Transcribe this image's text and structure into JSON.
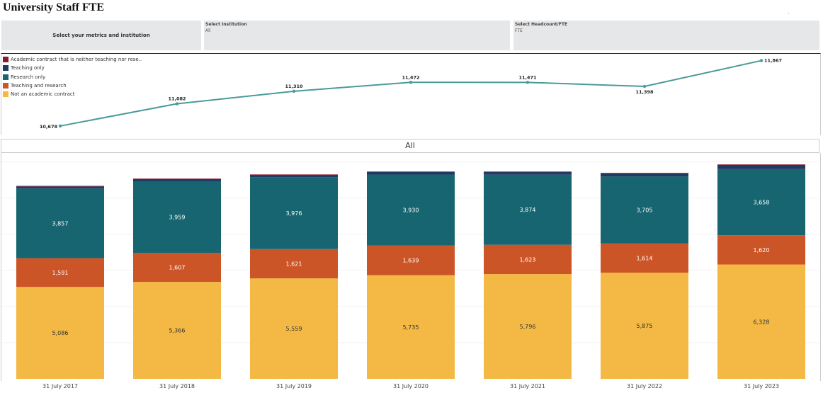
{
  "header": {
    "title": "University Staff FTE"
  },
  "filters": {
    "main_label": "Select your metrics and institution",
    "institution": {
      "label": "Select Institution",
      "value": "All"
    },
    "headcount": {
      "label": "Select Headcount/FTE",
      "value": "FTE"
    }
  },
  "legend": [
    {
      "label": "Academic contract that is neither teaching nor rese..",
      "color": "#8b1a2e"
    },
    {
      "label": "Teaching only",
      "color": "#1f3b63"
    },
    {
      "label": "Research only",
      "color": "#166570"
    },
    {
      "label": "Teaching and research",
      "color": "#cc5527"
    },
    {
      "label": "Not an academic contract",
      "color": "#f3b944"
    }
  ],
  "bar_header": "All",
  "chart_data": [
    {
      "type": "line",
      "x": [
        "31 July 2017",
        "31 July 2018",
        "31 July 2019",
        "31 July 2020",
        "31 July 2021",
        "31 July 2022",
        "31 July 2023"
      ],
      "values": [
        10678,
        11082,
        11310,
        11472,
        11471,
        11398,
        11867
      ],
      "labels": [
        "10,678",
        "11,082",
        "11,310",
        "11,472",
        "11,471",
        "11,398",
        "11,867"
      ],
      "color": "#4a9a9a"
    },
    {
      "type": "bar",
      "stacked": true,
      "categories": [
        "31 July 2017",
        "31 July 2018",
        "31 July 2019",
        "31 July 2020",
        "31 July 2021",
        "31 July 2022",
        "31 July 2023"
      ],
      "series": [
        {
          "name": "Not an academic contract",
          "color": "#f3b944",
          "values": [
            5086,
            5366,
            5559,
            5735,
            5796,
            5875,
            6328
          ],
          "labels": [
            "5,086",
            "5,366",
            "5,559",
            "5,735",
            "5,796",
            "5,875",
            "6,328"
          ]
        },
        {
          "name": "Teaching and research",
          "color": "#cc5527",
          "values": [
            1591,
            1607,
            1621,
            1639,
            1623,
            1614,
            1620
          ],
          "labels": [
            "1,591",
            "1,607",
            "1,621",
            "1,639",
            "1,623",
            "1,614",
            "1,620"
          ]
        },
        {
          "name": "Research only",
          "color": "#166570",
          "values": [
            3857,
            3959,
            3976,
            3930,
            3874,
            3705,
            3658
          ],
          "labels": [
            "3,857",
            "3,959",
            "3,976",
            "3,930",
            "3,874",
            "3,705",
            "3,658"
          ]
        },
        {
          "name": "Teaching only",
          "color": "#1f3b63",
          "values": [
            110,
            123,
            128,
            140,
            150,
            175,
            232
          ],
          "labels": []
        },
        {
          "name": "Academic contract that is neither teaching nor rese..",
          "color": "#8b1a2e",
          "values": [
            34,
            27,
            26,
            28,
            28,
            29,
            29
          ],
          "labels": []
        }
      ],
      "ylim": [
        0,
        12500
      ]
    }
  ]
}
